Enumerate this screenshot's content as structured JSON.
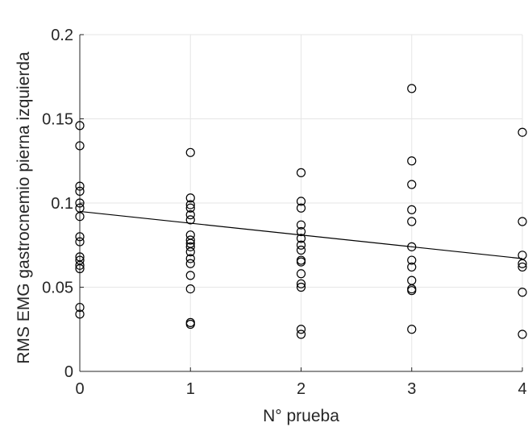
{
  "chart_data": {
    "type": "scatter",
    "xlabel": "N° prueba",
    "ylabel": "RMS EMG gastrocnemio pierna izquierda",
    "xlim": [
      0,
      4
    ],
    "ylim": [
      0,
      0.2
    ],
    "xticks": [
      "0",
      "1",
      "2",
      "3",
      "4"
    ],
    "yticks": [
      "0",
      "0.05",
      "0.1",
      "0.15",
      "0.2"
    ],
    "grid": true,
    "series": [
      {
        "type": "scatter",
        "marker": "circle",
        "color": "#000000",
        "points": [
          [
            0,
            0.146
          ],
          [
            0,
            0.134
          ],
          [
            0,
            0.11
          ],
          [
            0,
            0.107
          ],
          [
            0,
            0.1
          ],
          [
            0,
            0.097
          ],
          [
            0,
            0.092
          ],
          [
            0,
            0.08
          ],
          [
            0,
            0.077
          ],
          [
            0,
            0.068
          ],
          [
            0,
            0.066
          ],
          [
            0,
            0.063
          ],
          [
            0,
            0.061
          ],
          [
            0,
            0.038
          ],
          [
            0,
            0.034
          ],
          [
            1,
            0.13
          ],
          [
            1,
            0.103
          ],
          [
            1,
            0.099
          ],
          [
            1,
            0.097
          ],
          [
            1,
            0.093
          ],
          [
            1,
            0.09
          ],
          [
            1,
            0.081
          ],
          [
            1,
            0.078
          ],
          [
            1,
            0.076
          ],
          [
            1,
            0.074
          ],
          [
            1,
            0.071
          ],
          [
            1,
            0.067
          ],
          [
            1,
            0.064
          ],
          [
            1,
            0.057
          ],
          [
            1,
            0.049
          ],
          [
            1,
            0.029
          ],
          [
            1,
            0.028
          ],
          [
            2,
            0.118
          ],
          [
            2,
            0.101
          ],
          [
            2,
            0.097
          ],
          [
            2,
            0.087
          ],
          [
            2,
            0.083
          ],
          [
            2,
            0.079
          ],
          [
            2,
            0.075
          ],
          [
            2,
            0.072
          ],
          [
            2,
            0.066
          ],
          [
            2,
            0.065
          ],
          [
            2,
            0.058
          ],
          [
            2,
            0.052
          ],
          [
            2,
            0.05
          ],
          [
            2,
            0.025
          ],
          [
            2,
            0.022
          ],
          [
            3,
            0.168
          ],
          [
            3,
            0.125
          ],
          [
            3,
            0.111
          ],
          [
            3,
            0.096
          ],
          [
            3,
            0.089
          ],
          [
            3,
            0.074
          ],
          [
            3,
            0.066
          ],
          [
            3,
            0.062
          ],
          [
            3,
            0.054
          ],
          [
            3,
            0.049
          ],
          [
            3,
            0.048
          ],
          [
            3,
            0.025
          ],
          [
            4,
            0.142
          ],
          [
            4,
            0.089
          ],
          [
            4,
            0.069
          ],
          [
            4,
            0.064
          ],
          [
            4,
            0.062
          ],
          [
            4,
            0.047
          ],
          [
            4,
            0.022
          ]
        ]
      },
      {
        "type": "line",
        "x": [
          0,
          4
        ],
        "y": [
          0.095,
          0.067
        ],
        "color": "#000000"
      }
    ]
  }
}
